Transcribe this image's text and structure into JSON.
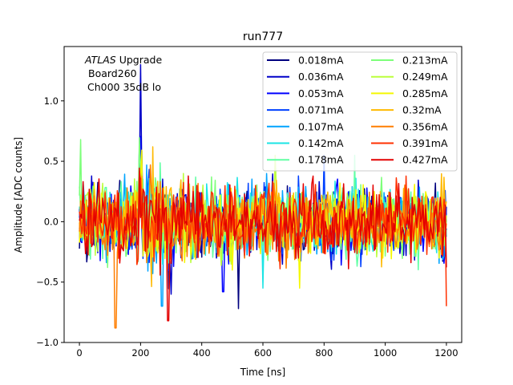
{
  "chart_data": {
    "type": "line",
    "title": "run777",
    "xlabel": "Time [ns]",
    "ylabel": "Amplitude [ADC counts]",
    "xlim": [
      -50,
      1250
    ],
    "ylim": [
      -1.0,
      1.45
    ],
    "xticks": [
      0,
      200,
      400,
      600,
      800,
      1000,
      1200
    ],
    "xtick_labels": [
      "0",
      "200",
      "400",
      "600",
      "800",
      "1000",
      "1200"
    ],
    "yticks": [
      -1.0,
      -0.5,
      0.0,
      0.5,
      1.0
    ],
    "ytick_labels": [
      "−1.0",
      "−0.5",
      "0.0",
      "0.5",
      "1.0"
    ],
    "grid": false,
    "legend_position": "top-right",
    "legend_columns": 2,
    "annotation": {
      "line1_italic": "ATLAS",
      "line1_rest": " Upgrade",
      "line2": "Board260",
      "line3": "Ch000 35dB lo"
    },
    "series": [
      {
        "name": "0.018mA",
        "color": "#00007f",
        "spike": 0.0,
        "outlier": [
          -0.72,
          520
        ]
      },
      {
        "name": "0.036mA",
        "color": "#0000c8",
        "spike": 1.3,
        "outlier": [
          -0.6,
          300
        ]
      },
      {
        "name": "0.053mA",
        "color": "#0000ff",
        "spike": 0.0,
        "outlier": [
          -0.58,
          470
        ]
      },
      {
        "name": "0.071mA",
        "color": "#0040ff",
        "spike": 0.0,
        "outlier": [
          0.55,
          800
        ]
      },
      {
        "name": "0.107mA",
        "color": "#00a4ff",
        "spike": 0.0,
        "outlier": [
          -0.7,
          270
        ]
      },
      {
        "name": "0.142mA",
        "color": "#1be4e4",
        "spike": 0.0,
        "outlier": [
          -0.55,
          600
        ]
      },
      {
        "name": "0.178mA",
        "color": "#61ffa4",
        "spike": 0.0,
        "outlier": [
          0.55,
          900
        ]
      },
      {
        "name": "0.213mA",
        "color": "#7dff7a",
        "spike": 0.0,
        "outlier": [
          0.68,
          5
        ]
      },
      {
        "name": "0.249mA",
        "color": "#bbff3c",
        "spike": 0.0,
        "outlier": [
          0.55,
          640
        ]
      },
      {
        "name": "0.285mA",
        "color": "#f4f802",
        "spike": 0.0,
        "outlier": [
          -0.55,
          720
        ]
      },
      {
        "name": "0.32mA",
        "color": "#ffb900",
        "spike": 0.0,
        "outlier": [
          0.62,
          240
        ]
      },
      {
        "name": "0.356mA",
        "color": "#ff7e00",
        "spike": 0.0,
        "outlier": [
          -0.88,
          118
        ]
      },
      {
        "name": "0.391mA",
        "color": "#ff3000",
        "spike": 0.0,
        "outlier": [
          -0.7,
          1200
        ]
      },
      {
        "name": "0.427mA",
        "color": "#e30000",
        "spike": 0.0,
        "outlier": [
          -0.82,
          290
        ]
      }
    ]
  }
}
